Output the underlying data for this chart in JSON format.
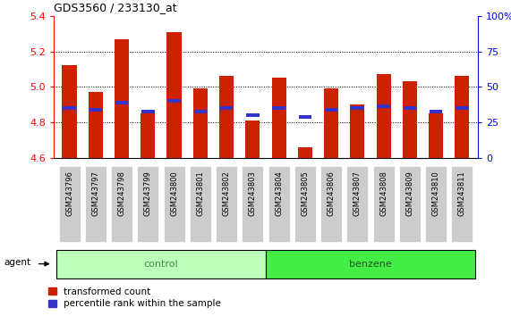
{
  "title": "GDS3560 / 233130_at",
  "samples": [
    "GSM243796",
    "GSM243797",
    "GSM243798",
    "GSM243799",
    "GSM243800",
    "GSM243801",
    "GSM243802",
    "GSM243803",
    "GSM243804",
    "GSM243805",
    "GSM243806",
    "GSM243807",
    "GSM243808",
    "GSM243809",
    "GSM243810",
    "GSM243811"
  ],
  "bar_values": [
    5.12,
    4.97,
    5.27,
    4.85,
    5.31,
    4.99,
    5.06,
    4.81,
    5.05,
    4.66,
    4.99,
    4.9,
    5.07,
    5.03,
    4.85,
    5.06
  ],
  "blue_values": [
    4.88,
    4.87,
    4.91,
    4.86,
    4.92,
    4.86,
    4.88,
    4.84,
    4.88,
    4.83,
    4.87,
    4.88,
    4.89,
    4.88,
    4.86,
    4.88
  ],
  "base": 4.6,
  "ylim": [
    4.6,
    5.4
  ],
  "yticks_left": [
    4.6,
    4.8,
    5.0,
    5.2,
    5.4
  ],
  "yticks_right": [
    0,
    25,
    50,
    75,
    100
  ],
  "bar_color": "#cc2200",
  "blue_color": "#3333cc",
  "control_label": "control",
  "benzene_label": "benzene",
  "agent_label": "agent",
  "legend_red": "transformed count",
  "legend_blue": "percentile rank within the sample",
  "control_color": "#bbffbb",
  "benzene_color": "#44ee44",
  "tick_box_color": "#cccccc",
  "bar_width": 0.55,
  "n_control": 8,
  "n_benzene": 8
}
